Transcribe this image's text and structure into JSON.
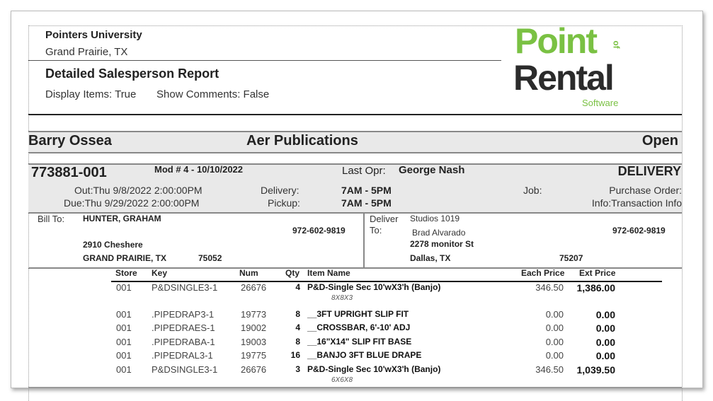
{
  "header": {
    "company": "Pointers University",
    "location": "Grand Prairie, TX",
    "report_title": "Detailed Salesperson Report",
    "display_items": "Display Items: True",
    "show_comments": "Show Comments: False"
  },
  "logo": {
    "line1": "Point",
    "of": "of",
    "line2": "Rental",
    "line3": "Software",
    "green": "#7ac143",
    "dark": "#2b2b2b"
  },
  "salesperson_band": {
    "salesperson": "Barry Ossea",
    "customer": "Aer Publications",
    "status": "Open"
  },
  "order": {
    "number": "773881-001",
    "mod": "Mod # 4 - 10/10/2022",
    "last_opr_label": "Last Opr:",
    "last_opr": "George Nash",
    "type": "DELIVERY",
    "out": "Out:Thu 9/8/2022  2:00:00PM",
    "due": "Due:Thu 9/29/2022  2:00:00PM",
    "delivery_label": "Delivery:",
    "delivery": "7AM - 5PM",
    "pickup_label": "Pickup:",
    "pickup": "7AM - 5PM",
    "job_label": "Job:",
    "po_label": "Purchase Order:",
    "info": "Info:Transaction Info"
  },
  "bill_to": {
    "label": "Bill To:",
    "name": "HUNTER, GRAHAM",
    "phone": "972-602-9819",
    "address": "2910 Cheshere",
    "city": "GRAND PRAIRIE, TX",
    "zip": "75052"
  },
  "deliver_to": {
    "label1": "Deliver",
    "label2": "To:",
    "name": "Studios 1019",
    "contact": "Brad Alvarado",
    "phone": "972-602-9819",
    "address": "2278 monitor St",
    "city": "Dallas, TX",
    "zip": "75207"
  },
  "table": {
    "headers": {
      "store": "Store",
      "key": "Key",
      "num": "Num",
      "qty": "Qty",
      "item": "Item Name",
      "each": "Each Price",
      "ext": "Ext Price"
    },
    "rows": [
      {
        "store": "001",
        "key": "P&DSINGLE3-1",
        "num": "26676",
        "qty": "4",
        "item": "P&D-Single Sec 10'wX3'h (Banjo)",
        "each": "346.50",
        "ext": "1,386.00",
        "sub": "8X8X3"
      },
      {
        "store": "001",
        "key": ".PIPEDRAP3-1",
        "num": "19773",
        "qty": "8",
        "item": "__3FT UPRIGHT SLIP FIT",
        "each": "0.00",
        "ext": "0.00"
      },
      {
        "store": "001",
        "key": ".PIPEDRAES-1",
        "num": "19002",
        "qty": "4",
        "item": "__CROSSBAR, 6'-10' ADJ",
        "each": "0.00",
        "ext": "0.00"
      },
      {
        "store": "001",
        "key": ".PIPEDRABA-1",
        "num": "19003",
        "qty": "8",
        "item": "__16\"X14\" SLIP FIT BASE",
        "each": "0.00",
        "ext": "0.00"
      },
      {
        "store": "001",
        "key": ".PIPEDRAL3-1",
        "num": "19775",
        "qty": "16",
        "item": "__BANJO 3FT BLUE DRAPE",
        "each": "0.00",
        "ext": "0.00"
      },
      {
        "store": "001",
        "key": "P&DSINGLE3-1",
        "num": "26676",
        "qty": "3",
        "item": "P&D-Single Sec 10'wX3'h (Banjo)",
        "each": "346.50",
        "ext": "1,039.50",
        "sub": "6X6X8"
      }
    ]
  }
}
